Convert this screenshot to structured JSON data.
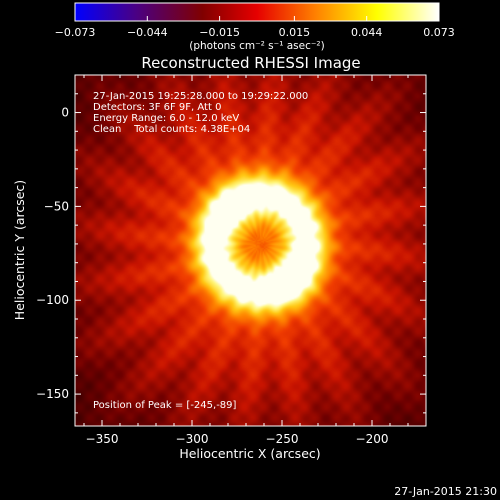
{
  "chart_data": {
    "type": "heatmap",
    "title": "Reconstructed RHESSI Image",
    "xlabel": "Heliocentric X (arcsec)",
    "ylabel": "Heliocentric Y (arcsec)",
    "xlim": [
      -365,
      -170
    ],
    "ylim": [
      -167,
      20
    ],
    "x_ticks": [
      -350,
      -300,
      -250,
      -200
    ],
    "y_ticks": [
      0,
      -50,
      -100,
      -150
    ],
    "colorbar": {
      "min": -0.073,
      "max": 0.073,
      "tick_values": [
        -0.073,
        -0.044,
        -0.015,
        0.015,
        0.044,
        0.073
      ],
      "tick_labels": [
        "-0.073",
        "-0.044",
        "-0.015",
        "0.015",
        "0.044",
        "0.073"
      ],
      "unit_label": "(photons cm⁻² s⁻¹ asec⁻²)",
      "colormap": [
        "#0000ff",
        "#4b0082",
        "#800000",
        "#e60000",
        "#ff8000",
        "#ffff00",
        "#ffffff"
      ]
    },
    "annotations": [
      "27-Jan-2015 19:25:28.000 to 19:29:22.000",
      "Detectors: 3F 6F 9F, Att 0",
      "Energy Range: 6.0 - 12.0 keV",
      "Clean    Total counts: 4.38E+04"
    ],
    "peak_label": "Position of Peak = [-245,-89]",
    "source": {
      "shape": "ring",
      "center": [
        -262,
        -70
      ],
      "ring_radius": 26,
      "peak": [
        -245,
        -89
      ]
    }
  },
  "footer": {
    "timestamp": "27-Jan-2015 21:30"
  }
}
